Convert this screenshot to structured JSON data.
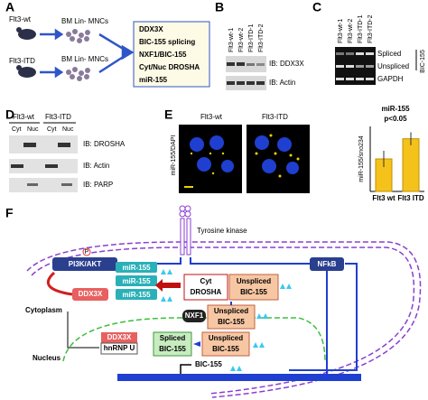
{
  "panels": {
    "A": {
      "label": "A",
      "rows": [
        {
          "group": "Flt3-wt",
          "cells": "BM Lin- MNCs"
        },
        {
          "group": "Flt3-ITD",
          "cells": "BM Lin- MNCs"
        }
      ],
      "assays": [
        "DDX3X",
        "BIC-155 splicing",
        "NXF1/BIC-155",
        "Cyt/Nuc DROSHA",
        "miR-155"
      ]
    },
    "B": {
      "label": "B",
      "lanes": [
        "Flt3-wt-1",
        "Flt3-wt-2",
        "Flt3-ITD-1",
        "Flt3-ITD-2"
      ],
      "blots": [
        "IB: DDX3X",
        "IB: Actin"
      ]
    },
    "C": {
      "label": "C",
      "lanes": [
        "Flt3-wt-1",
        "Flt3-wt-2",
        "Flt3-ITD-1",
        "Flt3-ITD-2"
      ],
      "bands": [
        "Spliced",
        "Unspliced",
        "GAPDH"
      ],
      "gene": "BIC-155"
    },
    "D": {
      "label": "D",
      "groups": [
        "Flt3-wt",
        "Flt3-ITD"
      ],
      "fractions": [
        "Cyt",
        "Nuc",
        "Cyt",
        "Nuc"
      ],
      "blots": [
        "IB: DROSHA",
        "IB: Actin",
        "IB: PARP"
      ]
    },
    "E": {
      "label": "E",
      "images": [
        "Flt3-wt",
        "Flt3-ITD"
      ],
      "stain": "miR-155/DAPI"
    },
    "F": {
      "label": "F",
      "receptor": "Tyrosine kinase",
      "pi3k": "PI3K/AKT",
      "phospho": "P",
      "nfkb": "NFkB",
      "mir": [
        "miR-155",
        "miR-155",
        "miR-155"
      ],
      "ddx3x_cyt": "DDX3X",
      "drosha": [
        "Cyt",
        "DROSHA"
      ],
      "unspliced": [
        "Unspliced",
        "BIC-155"
      ],
      "nxf1": "NXF1",
      "spliced": [
        "Spliced",
        "BIC-155"
      ],
      "ddx3x_nuc": "DDX3X",
      "hnrnp": "hnRNP U",
      "cytoplasm": "Cytoplasm",
      "nucleus": "Nucleus",
      "gene": "BIC-155"
    }
  },
  "chart_data": {
    "type": "bar",
    "title": "miR-155",
    "subtitle": "p<0.05",
    "ylabel": "miR-155/sno234",
    "categories": [
      "Flt3 wt",
      "Flt3 ITD"
    ],
    "values": [
      1.0,
      1.62
    ],
    "errors": [
      0.25,
      0.2
    ],
    "color": "#f5c21b",
    "ylim": [
      0,
      2
    ]
  }
}
